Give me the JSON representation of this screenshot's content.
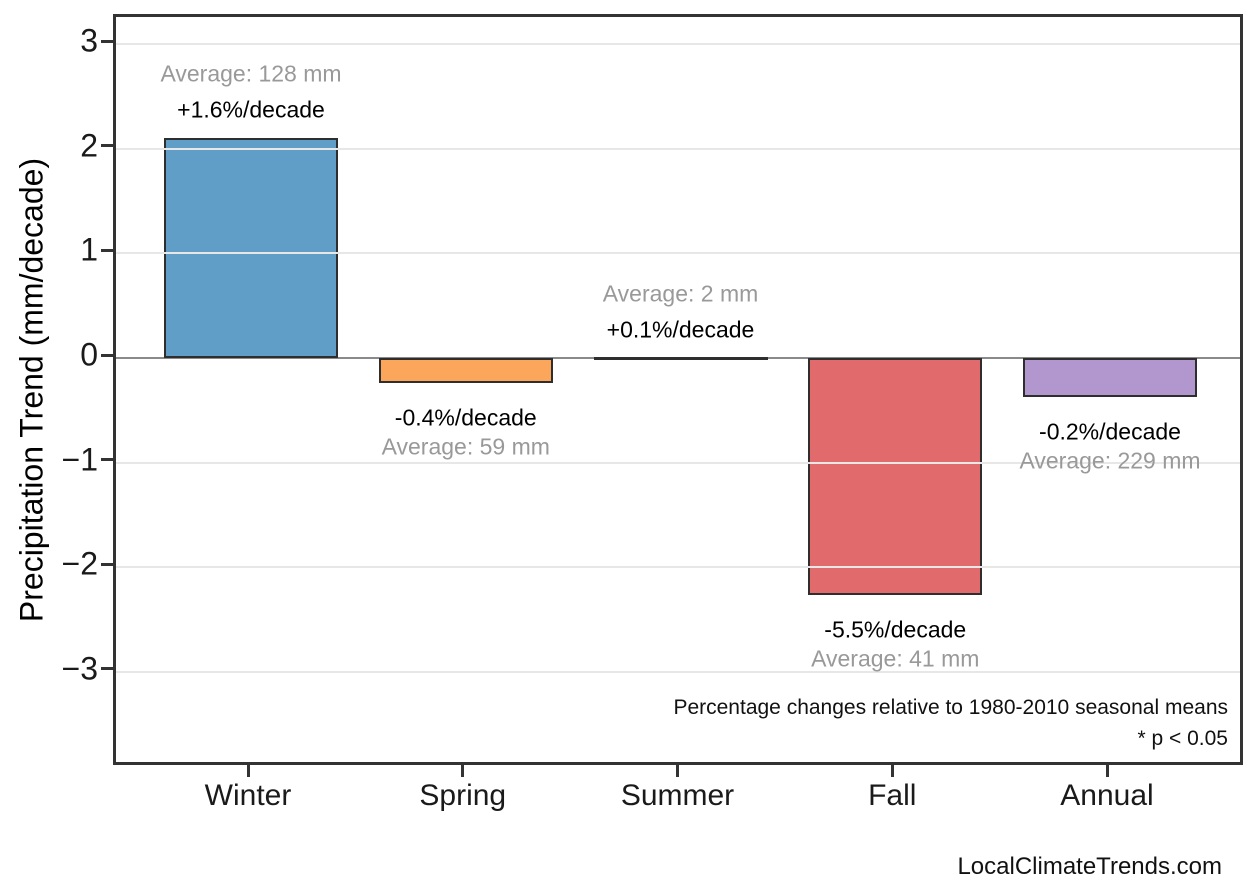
{
  "chart_data": {
    "type": "bar",
    "title": "",
    "categories": [
      "Winter",
      "Spring",
      "Summer",
      "Fall",
      "Annual"
    ],
    "values": [
      2.1,
      -0.24,
      0.0,
      -2.27,
      -0.37
    ],
    "bar_colors": [
      "#619EC7",
      "#FBA65A",
      "#2E2E2E",
      "#E06A6C",
      "#B297CF"
    ],
    "xlabel": "",
    "ylabel": "Precipitation Trend (mm/decade)",
    "ylim": [
      -3.9,
      3.26
    ],
    "yticks": [
      3,
      2,
      1,
      0,
      -1,
      -2,
      -3
    ],
    "ytick_labels": [
      "3",
      "2",
      "1",
      "0",
      "−1",
      "−2",
      "−3"
    ],
    "grid": "horizontal",
    "legend": "none",
    "annotations": [
      {
        "category": "Winter",
        "pct": "+1.6%/decade",
        "avg": "Average: 128 mm",
        "placement": "above"
      },
      {
        "category": "Spring",
        "pct": "-0.4%/decade",
        "avg": "Average: 59 mm",
        "placement": "below"
      },
      {
        "category": "Summer",
        "pct": "+0.1%/decade",
        "avg": "Average: 2 mm",
        "placement": "above"
      },
      {
        "category": "Fall",
        "pct": "-5.5%/decade",
        "avg": "Average: 41 mm",
        "placement": "below"
      },
      {
        "category": "Annual",
        "pct": "-0.2%/decade",
        "avg": "Average: 229 mm",
        "placement": "below"
      }
    ],
    "footnote_line1": "Percentage changes relative to 1980-2010 seasonal means",
    "footnote_line2": "* p < 0.05",
    "watermark": "LocalClimateTrends.com"
  },
  "colors": {
    "background": "#ffffff",
    "axis_frame": "#333333",
    "gridline": "#e7e7e7",
    "zero_line": "#8a8a8a",
    "bar_edge": "#2e2e2e",
    "pct_text": "#000000",
    "avg_text": "#999999",
    "tick_text": "#1a1a1a"
  }
}
